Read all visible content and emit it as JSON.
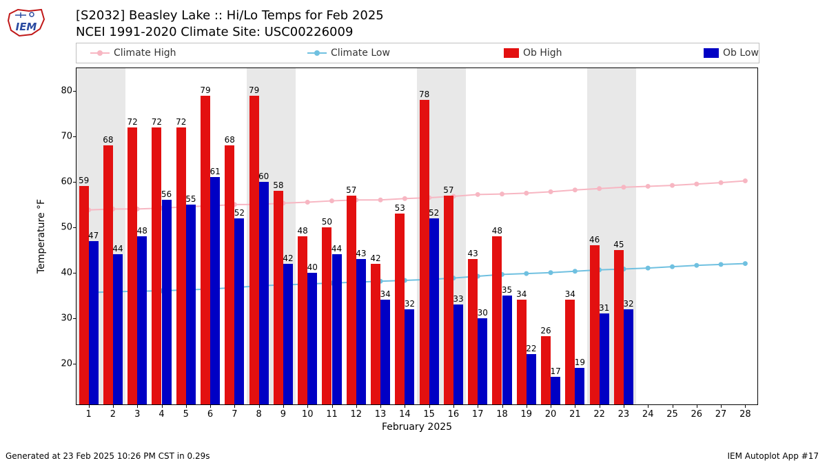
{
  "title": "[S2032] Beasley Lake :: Hi/Lo Temps for Feb 2025",
  "subtitle": "NCEI 1991-2020 Climate Site: USC00226009",
  "footer_left": "Generated at 23 Feb 2025 10:26 PM CST in 0.29s",
  "footer_right": "IEM Autoplot App #17",
  "xlabel": "February 2025",
  "ylabel": "Temperature °F",
  "chart": {
    "type": "bar+line",
    "xlim": [
      0.5,
      28.5
    ],
    "ylim": [
      11,
      85
    ],
    "yticks": [
      20,
      30,
      40,
      50,
      60,
      70,
      80
    ],
    "days": [
      1,
      2,
      3,
      4,
      5,
      6,
      7,
      8,
      9,
      10,
      11,
      12,
      13,
      14,
      15,
      16,
      17,
      18,
      19,
      20,
      21,
      22,
      23,
      24,
      25,
      26,
      27,
      28
    ],
    "weekend_bands": [
      [
        0.5,
        2.5
      ],
      [
        7.5,
        9.5
      ],
      [
        14.5,
        16.5
      ],
      [
        21.5,
        23.5
      ]
    ],
    "ob_high": [
      59,
      68,
      72,
      72,
      72,
      79,
      68,
      79,
      58,
      48,
      50,
      57,
      42,
      53,
      78,
      57,
      43,
      48,
      34,
      26,
      34,
      46,
      45
    ],
    "ob_low": [
      47,
      44,
      48,
      56,
      55,
      61,
      52,
      60,
      42,
      40,
      44,
      43,
      34,
      32,
      52,
      33,
      30,
      35,
      22,
      17,
      19,
      31,
      32
    ],
    "climate_high": [
      53.8,
      54.0,
      54.0,
      54.2,
      54.5,
      54.7,
      55.0,
      55.0,
      55.3,
      55.5,
      55.8,
      56.0,
      56.0,
      56.3,
      56.5,
      56.8,
      57.2,
      57.3,
      57.5,
      57.8,
      58.2,
      58.5,
      58.8,
      59.0,
      59.2,
      59.5,
      59.8,
      60.2
    ],
    "climate_low": [
      35.6,
      35.8,
      35.9,
      36.0,
      36.2,
      36.4,
      36.7,
      37.1,
      37.3,
      37.5,
      37.7,
      37.9,
      38.1,
      38.3,
      38.5,
      38.8,
      39.2,
      39.6,
      39.8,
      40.0,
      40.3,
      40.6,
      40.8,
      41.0,
      41.3,
      41.6,
      41.8,
      42.0
    ],
    "bar_width": 0.4,
    "colors": {
      "ob_high": "#e31010",
      "ob_low": "#0000c4",
      "climate_high": "#f7b6c2",
      "climate_low": "#6fc0e0",
      "weekend_band": "#e8e8e8",
      "axis": "#000000",
      "background": "#ffffff"
    },
    "marker_radius": 3.5,
    "line_width": 2,
    "label_fontsize": 12
  },
  "legend": {
    "items": [
      {
        "kind": "line",
        "label": "Climate High",
        "color": "#f7b6c2"
      },
      {
        "kind": "line",
        "label": "Climate Low",
        "color": "#6fc0e0"
      },
      {
        "kind": "swatch",
        "label": "Ob High",
        "color": "#e31010"
      },
      {
        "kind": "swatch",
        "label": "Ob Low",
        "color": "#0000c4"
      }
    ]
  },
  "logo": {
    "text": "IEM",
    "outline_color": "#c01818",
    "text_color": "#2a4aa0"
  }
}
